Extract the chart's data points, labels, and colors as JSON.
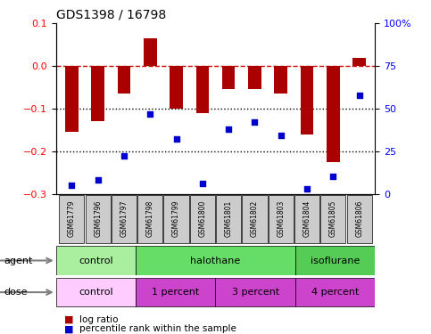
{
  "title": "GDS1398 / 16798",
  "samples": [
    "GSM61779",
    "GSM61796",
    "GSM61797",
    "GSM61798",
    "GSM61799",
    "GSM61800",
    "GSM61801",
    "GSM61802",
    "GSM61803",
    "GSM61804",
    "GSM61805",
    "GSM61806"
  ],
  "log_ratio": [
    -0.155,
    -0.13,
    -0.065,
    0.065,
    -0.1,
    -0.11,
    -0.055,
    -0.055,
    -0.065,
    -0.16,
    -0.225,
    0.02
  ],
  "percentile_rank": [
    5,
    8,
    22,
    47,
    32,
    6,
    38,
    42,
    34,
    3,
    10,
    58
  ],
  "ylim_left": [
    -0.3,
    0.1
  ],
  "ylim_right": [
    0,
    100
  ],
  "y_ticks_left": [
    -0.3,
    -0.2,
    -0.1,
    0.0,
    0.1
  ],
  "y_ticks_right": [
    0,
    25,
    50,
    75,
    100
  ],
  "agent_groups": [
    {
      "label": "control",
      "start": 0,
      "end": 3,
      "color": "#AAEEA0"
    },
    {
      "label": "halothane",
      "start": 3,
      "end": 9,
      "color": "#66DD66"
    },
    {
      "label": "isoflurane",
      "start": 9,
      "end": 12,
      "color": "#55CC55"
    }
  ],
  "dose_groups": [
    {
      "label": "control",
      "start": 0,
      "end": 3,
      "color": "#FFCCFF"
    },
    {
      "label": "1 percent",
      "start": 3,
      "end": 6,
      "color": "#CC44CC"
    },
    {
      "label": "3 percent",
      "start": 6,
      "end": 9,
      "color": "#CC44CC"
    },
    {
      "label": "4 percent",
      "start": 9,
      "end": 12,
      "color": "#CC44CC"
    }
  ],
  "bar_color": "#AA0000",
  "scatter_color": "#0000CC",
  "dashed_line_color": "#CC0000",
  "dotted_line_color": "#000000",
  "legend_items": [
    "log ratio",
    "percentile rank within the sample"
  ],
  "sample_box_color": "#CCCCCC"
}
